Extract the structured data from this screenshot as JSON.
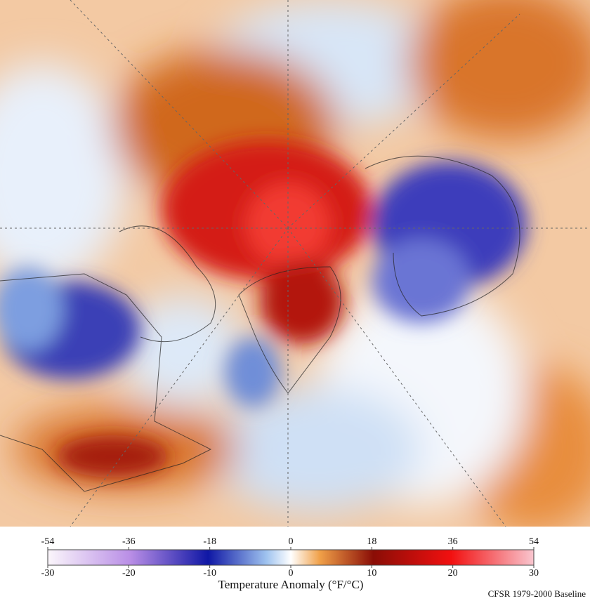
{
  "colorbar": {
    "fahrenheit_lim": [
      -54,
      54
    ],
    "fahrenheit_ticks": [
      -54,
      -36,
      -18,
      0,
      18,
      36,
      54
    ],
    "celsius_lim": [
      -30,
      30
    ],
    "celsius_ticks": [
      -30,
      -20,
      -10,
      0,
      10,
      20,
      30
    ],
    "label": "Temperature Anomaly (°F/°C)"
  },
  "baseline_note": "CFSR 1979-2000 Baseline"
}
